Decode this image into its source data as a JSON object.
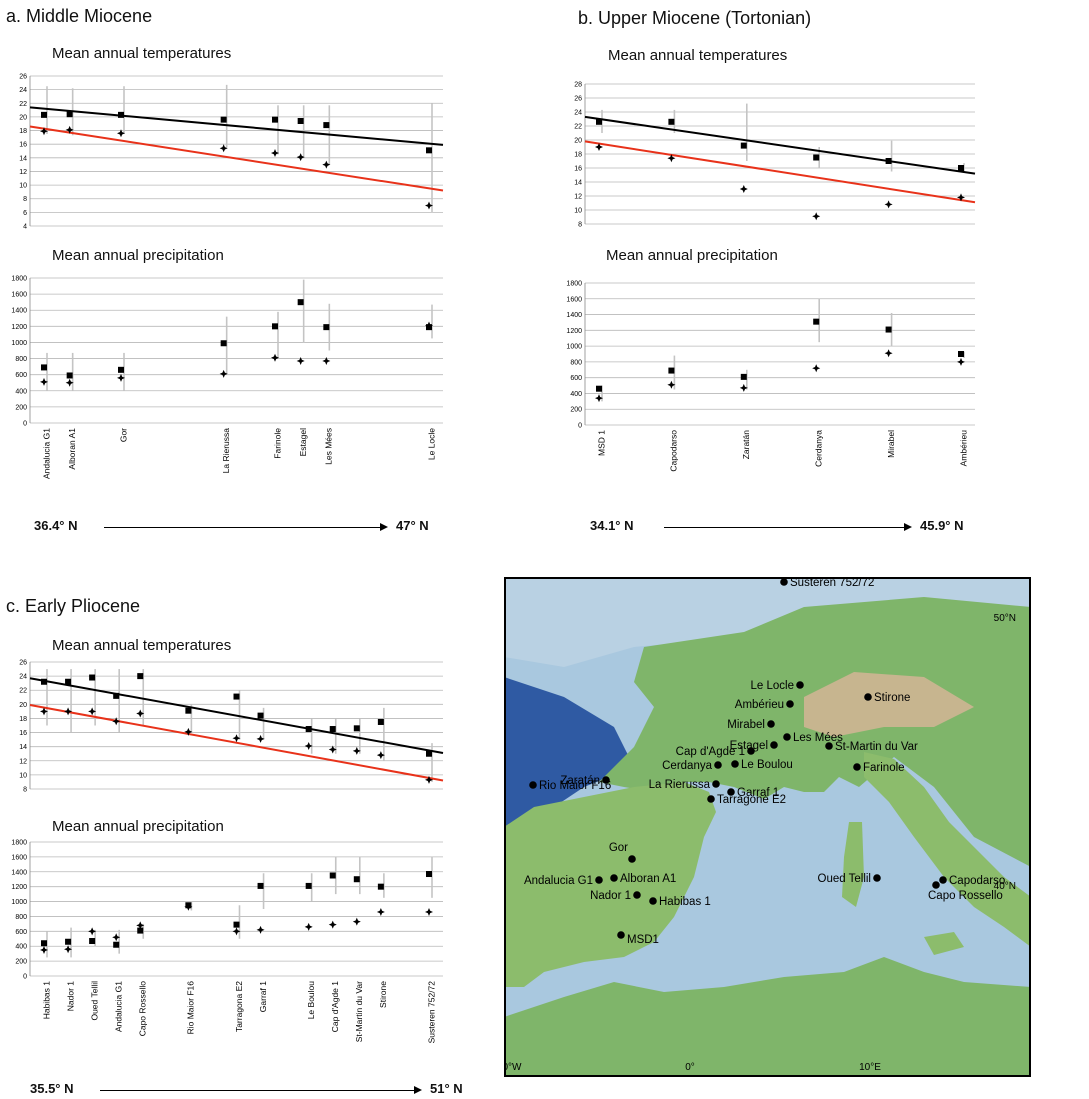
{
  "panels": {
    "a": {
      "title": "a. Middle Miocene",
      "temp_title": "Mean annual temperatures",
      "precip_title": "Mean annual precipitation",
      "lat_start": "36.4° N",
      "lat_end": "47° N"
    },
    "b": {
      "title": "b. Upper Miocene (Tortonian)",
      "temp_title": "Mean annual temperatures",
      "precip_title": "Mean annual precipitation",
      "lat_start": "34.1° N",
      "lat_end": "45.9° N"
    },
    "c": {
      "title": "c. Early Pliocene",
      "temp_title": "Mean annual temperatures",
      "precip_title": "Mean annual precipitation",
      "lat_start": "35.5° N",
      "lat_end": "51° N"
    }
  },
  "chart_data": [
    {
      "id": "a_temp",
      "type": "scatter",
      "title": "Mean annual temperatures",
      "ylim": [
        4,
        26
      ],
      "yticks": [
        4,
        6,
        8,
        10,
        12,
        14,
        16,
        18,
        20,
        22,
        24,
        26
      ],
      "x": [
        0,
        1,
        3,
        7,
        9,
        10,
        11,
        15
      ],
      "series": [
        {
          "marker": "square",
          "values": [
            20.3,
            20.4,
            20.3,
            19.6,
            19.6,
            19.4,
            18.8,
            15.1
          ],
          "range_low": [
            17.5,
            17.3,
            17.5,
            15.5,
            14.5,
            14,
            13,
            6
          ],
          "range_high": [
            24.5,
            24.2,
            24.5,
            24.7,
            21.7,
            21.7,
            21.7,
            22
          ]
        },
        {
          "marker": "cross",
          "values": [
            17.9,
            18.1,
            17.6,
            15.4,
            14.7,
            14.1,
            13.0,
            7.0
          ]
        }
      ],
      "trendlines": [
        {
          "color": "#000000",
          "from": 21.4,
          "to": 15.9
        },
        {
          "color": "#e8321a",
          "from": 18.6,
          "to": 9.2
        }
      ],
      "grid": true
    },
    {
      "id": "a_precip",
      "type": "scatter",
      "title": "Mean annual precipitation",
      "ylim": [
        0,
        1800
      ],
      "yticks": [
        0,
        200,
        400,
        600,
        800,
        1000,
        1200,
        1400,
        1600,
        1800
      ],
      "categories": [
        "Andalucia G1",
        "Alboran A1",
        "Gor",
        "La Rierussa",
        "Farinole",
        "Estagel",
        "Les Mées",
        "Le Locle"
      ],
      "x": [
        0,
        1,
        3,
        7,
        9,
        10,
        11,
        15
      ],
      "series": [
        {
          "marker": "square",
          "values": [
            690,
            590,
            660,
            990,
            1200,
            1500,
            1190,
            1190
          ],
          "range_low": [
            400,
            400,
            400,
            600,
            800,
            1000,
            900,
            1050
          ],
          "range_high": [
            870,
            870,
            870,
            1320,
            1380,
            1780,
            1480,
            1470
          ]
        },
        {
          "marker": "cross",
          "values": [
            510,
            500,
            560,
            610,
            810,
            770,
            770,
            1210
          ]
        }
      ],
      "grid": true
    },
    {
      "id": "b_temp",
      "type": "scatter",
      "title": "Mean annual temperatures",
      "ylim": [
        8,
        28
      ],
      "yticks": [
        8,
        10,
        12,
        14,
        16,
        18,
        20,
        22,
        24,
        26,
        28
      ],
      "x": [
        0,
        1,
        2,
        3,
        4,
        5
      ],
      "series": [
        {
          "marker": "square",
          "values": [
            22.6,
            22.6,
            19.2,
            17.5,
            17.0,
            16.0
          ],
          "range_low": [
            21,
            21,
            17,
            16,
            15.5,
            15.3
          ],
          "range_high": [
            24.3,
            24.3,
            25.2,
            19,
            19.9,
            16.7
          ]
        },
        {
          "marker": "cross",
          "values": [
            19.0,
            17.4,
            13.0,
            9.1,
            10.8,
            11.8
          ]
        }
      ],
      "trendlines": [
        {
          "color": "#000000",
          "from": 23.3,
          "to": 15.2
        },
        {
          "color": "#e8321a",
          "from": 19.8,
          "to": 11.1
        }
      ],
      "grid": true
    },
    {
      "id": "b_precip",
      "type": "scatter",
      "title": "Mean annual precipitation",
      "ylim": [
        0,
        1800
      ],
      "yticks": [
        0,
        200,
        400,
        600,
        800,
        1000,
        1200,
        1400,
        1600,
        1800
      ],
      "categories": [
        "MSD 1",
        "Capodarso",
        "Zaratán",
        "Cerdanya",
        "Mirabel",
        "Ambérieu"
      ],
      "x": [
        0,
        1,
        2,
        3,
        4,
        5
      ],
      "series": [
        {
          "marker": "square",
          "values": [
            460,
            690,
            610,
            1310,
            1210,
            900
          ],
          "range_low": [
            300,
            450,
            450,
            1050,
            1000,
            850
          ],
          "range_high": [
            500,
            880,
            700,
            1600,
            1420,
            930
          ]
        },
        {
          "marker": "cross",
          "values": [
            340,
            510,
            470,
            720,
            910,
            800
          ]
        }
      ],
      "grid": true
    },
    {
      "id": "c_temp",
      "type": "scatter",
      "title": "Mean annual temperatures",
      "ylim": [
        8,
        26
      ],
      "yticks": [
        8,
        10,
        12,
        14,
        16,
        18,
        20,
        22,
        24,
        26
      ],
      "x": [
        0,
        1,
        2,
        3,
        4,
        6,
        8,
        9,
        11,
        12,
        13,
        14,
        16
      ],
      "series": [
        {
          "marker": "square",
          "values": [
            23.2,
            23.2,
            23.8,
            21.2,
            24.0,
            19.1,
            21.1,
            18.4,
            16.5,
            16.5,
            16.6,
            17.5,
            13.0
          ],
          "range_low": [
            17,
            16,
            17,
            16,
            17,
            16,
            15,
            15,
            13,
            13,
            13,
            12,
            9
          ],
          "range_high": [
            25,
            25,
            25,
            25,
            25,
            20,
            22,
            19.5,
            18,
            18,
            18,
            19.5,
            14.5
          ]
        },
        {
          "marker": "cross",
          "values": [
            19.0,
            19.0,
            19.0,
            17.6,
            18.7,
            16.1,
            15.2,
            15.1,
            14.1,
            13.6,
            13.4,
            12.8,
            9.3
          ]
        }
      ],
      "trendlines": [
        {
          "color": "#000000",
          "from": 23.7,
          "to": 13.1
        },
        {
          "color": "#e8321a",
          "from": 19.9,
          "to": 9.2
        }
      ],
      "grid": true
    },
    {
      "id": "c_precip",
      "type": "scatter",
      "title": "Mean annual precipitation",
      "ylim": [
        0,
        1800
      ],
      "yticks": [
        0,
        200,
        400,
        600,
        800,
        1000,
        1200,
        1400,
        1600,
        1800
      ],
      "categories": [
        "Habibas 1",
        "Nador 1",
        "Oued Tellil",
        "Andalucia G1",
        "Capo Rossello",
        "Rio Maior F16",
        "Tarragona E2",
        "Garraf 1",
        "Le Boulou",
        "Cap d'Agde 1",
        "St-Martin du Var",
        "Stirone",
        "Susteren 752/72"
      ],
      "x": [
        0,
        1,
        2,
        3,
        4,
        6,
        8,
        9,
        11,
        12,
        13,
        14,
        16
      ],
      "series": [
        {
          "marker": "square",
          "values": [
            440,
            460,
            470,
            420,
            610,
            950,
            690,
            1210,
            1210,
            1350,
            1300,
            1200,
            1370
          ],
          "range_low": [
            250,
            250,
            400,
            300,
            500,
            880,
            500,
            900,
            1000,
            1100,
            1100,
            1050,
            1050
          ],
          "range_high": [
            600,
            650,
            620,
            620,
            700,
            1000,
            950,
            1380,
            1380,
            1600,
            1600,
            1380,
            1600
          ]
        },
        {
          "marker": "cross",
          "values": [
            350,
            360,
            600,
            520,
            680,
            930,
            600,
            620,
            660,
            690,
            730,
            860,
            860
          ]
        }
      ],
      "grid": true
    }
  ],
  "map": {
    "lat_labels": [
      "50°N",
      "40°N"
    ],
    "lon_labels": [
      "0°W",
      "0°",
      "10°E"
    ],
    "sites": [
      {
        "name": "Susteren 752/72"
      },
      {
        "name": "Le Locle"
      },
      {
        "name": "Ambérieu"
      },
      {
        "name": "Stirone"
      },
      {
        "name": "Mirabel"
      },
      {
        "name": "Les Mées"
      },
      {
        "name": "Estagel"
      },
      {
        "name": "St-Martin du Var"
      },
      {
        "name": "Cap d'Agde 1"
      },
      {
        "name": "Cerdanya"
      },
      {
        "name": "Le Boulou"
      },
      {
        "name": "Farinole"
      },
      {
        "name": "Zaratán"
      },
      {
        "name": "La Rierussa"
      },
      {
        "name": "Garraf 1"
      },
      {
        "name": "Tarragone E2"
      },
      {
        "name": "Rio Maior F16"
      },
      {
        "name": "Gor"
      },
      {
        "name": "Andalucia G1"
      },
      {
        "name": "Alboran A1"
      },
      {
        "name": "Nador 1"
      },
      {
        "name": "Habibas 1"
      },
      {
        "name": "MSD1"
      },
      {
        "name": "Oued Tellil"
      },
      {
        "name": "Capodarso"
      },
      {
        "name": "Capo Rossello"
      }
    ]
  },
  "colors": {
    "black_trend": "#000000",
    "red_trend": "#e8321a",
    "grid": "#b8b8b8",
    "range_bar": "#c4c4c4"
  }
}
